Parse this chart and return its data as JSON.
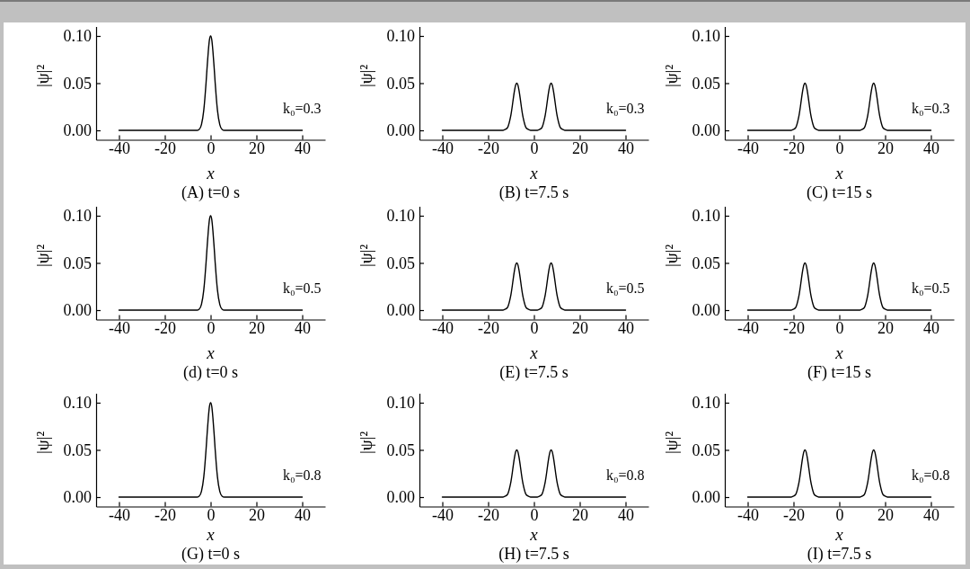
{
  "chart_data": [
    {
      "type": "line",
      "title": "(A) t=0 s",
      "xlabel": "x",
      "ylabel": "|ψ|²",
      "annotations": [
        "k₀=0.3"
      ],
      "color": "#000000",
      "xlim": [
        -50,
        50
      ],
      "xticks": [
        -40,
        -20,
        0,
        20,
        40
      ],
      "ylim": [
        -0.01,
        0.11
      ],
      "yticks": [
        {
          "value": 0,
          "label": "0.00"
        },
        {
          "value": 0.05,
          "label": "0.05"
        },
        {
          "value": 0.1,
          "label": "0.10"
        }
      ],
      "x": [
        -40,
        -6,
        -5,
        -4,
        -3,
        -2.5,
        -2,
        -1.5,
        -1,
        -0.5,
        0,
        0.5,
        1,
        1.5,
        2,
        2.5,
        3,
        4,
        5,
        6,
        40
      ],
      "values": [
        0,
        0,
        0.001,
        0.006,
        0.021,
        0.034,
        0.05,
        0.068,
        0.084,
        0.096,
        0.1,
        0.096,
        0.084,
        0.068,
        0.05,
        0.034,
        0.021,
        0.006,
        0.001,
        0,
        0
      ]
    },
    {
      "type": "line",
      "title": "(B) t=7.5 s",
      "xlabel": "x",
      "ylabel": "|ψ|²",
      "annotations": [
        "k₀=0.3"
      ],
      "color": "#000000",
      "xlim": [
        -50,
        50
      ],
      "xticks": [
        -40,
        -20,
        0,
        20,
        40
      ],
      "ylim": [
        -0.01,
        0.11
      ],
      "yticks": [
        {
          "value": 0,
          "label": "0.00"
        },
        {
          "value": 0.05,
          "label": "0.05"
        },
        {
          "value": 0.1,
          "label": "0.10"
        }
      ],
      "x": [
        -40,
        -13.5,
        -12.5,
        -11.5,
        -10.5,
        -10,
        -9.5,
        -9,
        -8.5,
        -8,
        -7.5,
        -7,
        -6.5,
        -6,
        -5.5,
        -5,
        -4.5,
        -3.5,
        -2.5,
        -1.5,
        0,
        1.5,
        2.5,
        3.5,
        4.5,
        5,
        5.5,
        6,
        6.5,
        7,
        7.5,
        8,
        8.5,
        9,
        9.5,
        10,
        10.5,
        11.5,
        12.5,
        13.5,
        40
      ],
      "values": [
        0,
        0,
        0.001,
        0.003,
        0.011,
        0.017,
        0.025,
        0.034,
        0.042,
        0.048,
        0.05,
        0.048,
        0.042,
        0.034,
        0.025,
        0.017,
        0.011,
        0.003,
        0.001,
        0,
        0,
        0,
        0.001,
        0.003,
        0.011,
        0.017,
        0.025,
        0.034,
        0.042,
        0.048,
        0.05,
        0.048,
        0.042,
        0.034,
        0.025,
        0.017,
        0.011,
        0.003,
        0.001,
        0,
        0
      ]
    },
    {
      "type": "line",
      "title": "(C) t=15 s",
      "xlabel": "x",
      "ylabel": "|ψ|²",
      "annotations": [
        "k₀=0.3"
      ],
      "color": "#000000",
      "xlim": [
        -50,
        50
      ],
      "xticks": [
        -40,
        -20,
        0,
        20,
        40
      ],
      "ylim": [
        -0.01,
        0.11
      ],
      "yticks": [
        {
          "value": 0,
          "label": "0.00"
        },
        {
          "value": 0.05,
          "label": "0.05"
        },
        {
          "value": 0.1,
          "label": "0.10"
        }
      ],
      "x": [
        -40,
        -21,
        -20,
        -19,
        -18,
        -17.5,
        -17,
        -16.5,
        -16,
        -15.5,
        -15,
        -14.5,
        -14,
        -13.5,
        -13,
        -12.5,
        -12,
        -11,
        -10,
        -9,
        9,
        10,
        11,
        12,
        12.5,
        13,
        13.5,
        14,
        14.5,
        15,
        15.5,
        16,
        16.5,
        17,
        17.5,
        18,
        19,
        20,
        21,
        40
      ],
      "values": [
        0,
        0,
        0.001,
        0.003,
        0.011,
        0.017,
        0.025,
        0.034,
        0.042,
        0.048,
        0.05,
        0.048,
        0.042,
        0.034,
        0.025,
        0.017,
        0.011,
        0.003,
        0.001,
        0,
        0,
        0.001,
        0.003,
        0.011,
        0.017,
        0.025,
        0.034,
        0.042,
        0.048,
        0.05,
        0.048,
        0.042,
        0.034,
        0.025,
        0.017,
        0.011,
        0.003,
        0.001,
        0,
        0
      ]
    },
    {
      "type": "line",
      "title": "(d) t=0 s",
      "xlabel": "x",
      "ylabel": "|ψ|²",
      "annotations": [
        "k₀=0.5"
      ],
      "color": "#000000",
      "xlim": [
        -50,
        50
      ],
      "xticks": [
        -40,
        -20,
        0,
        20,
        40
      ],
      "ylim": [
        -0.01,
        0.11
      ],
      "yticks": [
        {
          "value": 0,
          "label": "0.00"
        },
        {
          "value": 0.05,
          "label": "0.05"
        },
        {
          "value": 0.1,
          "label": "0.10"
        }
      ],
      "x": [
        -40,
        -6,
        -5,
        -4,
        -3,
        -2.5,
        -2,
        -1.5,
        -1,
        -0.5,
        0,
        0.5,
        1,
        1.5,
        2,
        2.5,
        3,
        4,
        5,
        6,
        40
      ],
      "values": [
        0,
        0,
        0.001,
        0.006,
        0.021,
        0.034,
        0.05,
        0.068,
        0.084,
        0.096,
        0.1,
        0.096,
        0.084,
        0.068,
        0.05,
        0.034,
        0.021,
        0.006,
        0.001,
        0,
        0
      ]
    },
    {
      "type": "line",
      "title": "(E) t=7.5 s",
      "xlabel": "x",
      "ylabel": "|ψ|²",
      "annotations": [
        "k₀=0.5"
      ],
      "color": "#000000",
      "xlim": [
        -50,
        50
      ],
      "xticks": [
        -40,
        -20,
        0,
        20,
        40
      ],
      "ylim": [
        -0.01,
        0.11
      ],
      "yticks": [
        {
          "value": 0,
          "label": "0.00"
        },
        {
          "value": 0.05,
          "label": "0.05"
        },
        {
          "value": 0.1,
          "label": "0.10"
        }
      ],
      "x": [
        -40,
        -13.5,
        -12.5,
        -11.5,
        -10.5,
        -10,
        -9.5,
        -9,
        -8.5,
        -8,
        -7.5,
        -7,
        -6.5,
        -6,
        -5.5,
        -5,
        -4.5,
        -3.5,
        -2.5,
        -1.5,
        0,
        1.5,
        2.5,
        3.5,
        4.5,
        5,
        5.5,
        6,
        6.5,
        7,
        7.5,
        8,
        8.5,
        9,
        9.5,
        10,
        10.5,
        11.5,
        12.5,
        13.5,
        40
      ],
      "values": [
        0,
        0,
        0.001,
        0.003,
        0.011,
        0.017,
        0.025,
        0.034,
        0.042,
        0.048,
        0.05,
        0.048,
        0.042,
        0.034,
        0.025,
        0.017,
        0.011,
        0.003,
        0.001,
        0,
        0,
        0,
        0.001,
        0.003,
        0.011,
        0.017,
        0.025,
        0.034,
        0.042,
        0.048,
        0.05,
        0.048,
        0.042,
        0.034,
        0.025,
        0.017,
        0.011,
        0.003,
        0.001,
        0,
        0
      ]
    },
    {
      "type": "line",
      "title": "(F) t=15 s",
      "xlabel": "x",
      "ylabel": "|ψ|²",
      "annotations": [
        "k₀=0.5"
      ],
      "color": "#000000",
      "xlim": [
        -50,
        50
      ],
      "xticks": [
        -40,
        -20,
        0,
        20,
        40
      ],
      "ylim": [
        -0.01,
        0.11
      ],
      "yticks": [
        {
          "value": 0,
          "label": "0.00"
        },
        {
          "value": 0.05,
          "label": "0.05"
        },
        {
          "value": 0.1,
          "label": "0.10"
        }
      ],
      "x": [
        -40,
        -21,
        -20,
        -19,
        -18,
        -17.5,
        -17,
        -16.5,
        -16,
        -15.5,
        -15,
        -14.5,
        -14,
        -13.5,
        -13,
        -12.5,
        -12,
        -11,
        -10,
        -9,
        9,
        10,
        11,
        12,
        12.5,
        13,
        13.5,
        14,
        14.5,
        15,
        15.5,
        16,
        16.5,
        17,
        17.5,
        18,
        19,
        20,
        21,
        40
      ],
      "values": [
        0,
        0,
        0.001,
        0.003,
        0.011,
        0.017,
        0.025,
        0.034,
        0.042,
        0.048,
        0.05,
        0.048,
        0.042,
        0.034,
        0.025,
        0.017,
        0.011,
        0.003,
        0.001,
        0,
        0,
        0.001,
        0.003,
        0.011,
        0.017,
        0.025,
        0.034,
        0.042,
        0.048,
        0.05,
        0.048,
        0.042,
        0.034,
        0.025,
        0.017,
        0.011,
        0.003,
        0.001,
        0,
        0
      ]
    },
    {
      "type": "line",
      "title": "(G) t=0 s",
      "xlabel": "x",
      "ylabel": "|ψ|²",
      "annotations": [
        "k₀=0.8"
      ],
      "color": "#000000",
      "xlim": [
        -50,
        50
      ],
      "xticks": [
        -40,
        -20,
        0,
        20,
        40
      ],
      "ylim": [
        -0.01,
        0.11
      ],
      "yticks": [
        {
          "value": 0,
          "label": "0.00"
        },
        {
          "value": 0.05,
          "label": "0.05"
        },
        {
          "value": 0.1,
          "label": "0.10"
        }
      ],
      "x": [
        -40,
        -6,
        -5,
        -4,
        -3,
        -2.5,
        -2,
        -1.5,
        -1,
        -0.5,
        0,
        0.5,
        1,
        1.5,
        2,
        2.5,
        3,
        4,
        5,
        6,
        40
      ],
      "values": [
        0,
        0,
        0.001,
        0.006,
        0.021,
        0.034,
        0.05,
        0.068,
        0.084,
        0.096,
        0.1,
        0.096,
        0.084,
        0.068,
        0.05,
        0.034,
        0.021,
        0.006,
        0.001,
        0,
        0
      ]
    },
    {
      "type": "line",
      "title": "(H) t=7.5 s",
      "xlabel": "x",
      "ylabel": "|ψ|²",
      "annotations": [
        "k₀=0.8"
      ],
      "color": "#000000",
      "xlim": [
        -50,
        50
      ],
      "xticks": [
        -40,
        -20,
        0,
        20,
        40
      ],
      "ylim": [
        -0.01,
        0.11
      ],
      "yticks": [
        {
          "value": 0,
          "label": "0.00"
        },
        {
          "value": 0.05,
          "label": "0.05"
        },
        {
          "value": 0.1,
          "label": "0.10"
        }
      ],
      "x": [
        -40,
        -13.5,
        -12.5,
        -11.5,
        -10.5,
        -10,
        -9.5,
        -9,
        -8.5,
        -8,
        -7.5,
        -7,
        -6.5,
        -6,
        -5.5,
        -5,
        -4.5,
        -3.5,
        -2.5,
        -1.5,
        0,
        1.5,
        2.5,
        3.5,
        4.5,
        5,
        5.5,
        6,
        6.5,
        7,
        7.5,
        8,
        8.5,
        9,
        9.5,
        10,
        10.5,
        11.5,
        12.5,
        13.5,
        40
      ],
      "values": [
        0,
        0,
        0.001,
        0.003,
        0.011,
        0.017,
        0.025,
        0.034,
        0.042,
        0.048,
        0.05,
        0.048,
        0.042,
        0.034,
        0.025,
        0.017,
        0.011,
        0.003,
        0.001,
        0,
        0,
        0,
        0.001,
        0.003,
        0.011,
        0.017,
        0.025,
        0.034,
        0.042,
        0.048,
        0.05,
        0.048,
        0.042,
        0.034,
        0.025,
        0.017,
        0.011,
        0.003,
        0.001,
        0,
        0
      ]
    },
    {
      "type": "line",
      "title": "(I) t=7.5 s",
      "xlabel": "x",
      "ylabel": "|ψ|²",
      "annotations": [
        "k₀=0.8"
      ],
      "color": "#000000",
      "xlim": [
        -50,
        50
      ],
      "xticks": [
        -40,
        -20,
        0,
        20,
        40
      ],
      "ylim": [
        -0.01,
        0.11
      ],
      "yticks": [
        {
          "value": 0,
          "label": "0.00"
        },
        {
          "value": 0.05,
          "label": "0.05"
        },
        {
          "value": 0.1,
          "label": "0.10"
        }
      ],
      "x": [
        -40,
        -21,
        -20,
        -19,
        -18,
        -17.5,
        -17,
        -16.5,
        -16,
        -15.5,
        -15,
        -14.5,
        -14,
        -13.5,
        -13,
        -12.5,
        -12,
        -11,
        -10,
        -9,
        9,
        10,
        11,
        12,
        12.5,
        13,
        13.5,
        14,
        14.5,
        15,
        15.5,
        16,
        16.5,
        17,
        17.5,
        18,
        19,
        20,
        21,
        40
      ],
      "values": [
        0,
        0,
        0.001,
        0.003,
        0.011,
        0.017,
        0.025,
        0.034,
        0.042,
        0.048,
        0.05,
        0.048,
        0.042,
        0.034,
        0.025,
        0.017,
        0.011,
        0.003,
        0.001,
        0,
        0,
        0.001,
        0.003,
        0.011,
        0.017,
        0.025,
        0.034,
        0.042,
        0.048,
        0.05,
        0.048,
        0.042,
        0.034,
        0.025,
        0.017,
        0.011,
        0.003,
        0.001,
        0,
        0
      ]
    }
  ]
}
